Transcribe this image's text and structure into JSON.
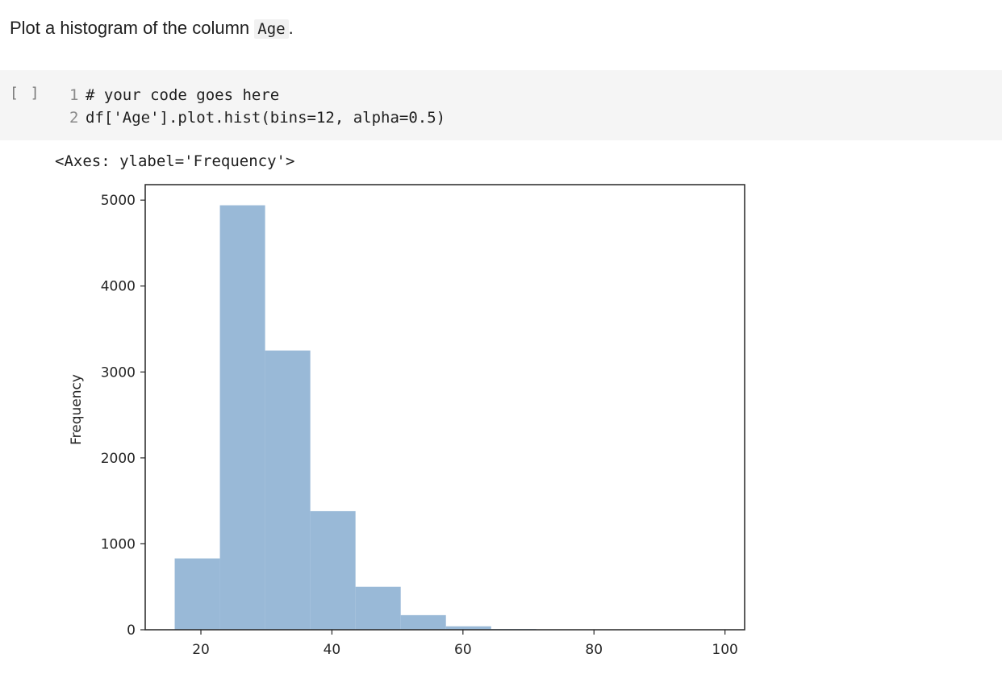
{
  "markdown": {
    "text_before": "Plot a histogram of the column ",
    "code": "Age",
    "text_after": "."
  },
  "code_cell": {
    "run_indicator": "[ ]",
    "lines": [
      {
        "number": "1",
        "code": "# your code goes here"
      },
      {
        "number": "2",
        "code": "df['Age'].plot.hist(bins=12, alpha=0.5)"
      }
    ]
  },
  "output": {
    "repr": "<Axes: ylabel='Frequency'>"
  },
  "colors": {
    "bar": "#99b9d7",
    "axis": "#262626"
  },
  "chart_data": {
    "type": "bar",
    "ylabel": "Frequency",
    "xlim": [
      11.5,
      103
    ],
    "ylim": [
      0,
      5180
    ],
    "bin_edges": [
      16,
      22.9,
      29.8,
      36.7,
      43.6,
      50.5,
      57.4,
      64.3,
      71.2,
      78.1,
      85.0,
      91.9,
      98.8
    ],
    "values": [
      830,
      4940,
      3250,
      1380,
      500,
      170,
      40,
      8,
      3,
      2,
      1,
      1
    ],
    "xticks": [
      {
        "value": 20,
        "label": "20"
      },
      {
        "value": 40,
        "label": "40"
      },
      {
        "value": 60,
        "label": "60"
      },
      {
        "value": 80,
        "label": "80"
      },
      {
        "value": 100,
        "label": "100"
      }
    ],
    "yticks": [
      {
        "value": 0,
        "label": "0"
      },
      {
        "value": 1000,
        "label": "1000"
      },
      {
        "value": 2000,
        "label": "2000"
      },
      {
        "value": 3000,
        "label": "3000"
      },
      {
        "value": 4000,
        "label": "4000"
      },
      {
        "value": 5000,
        "label": "5000"
      }
    ]
  }
}
